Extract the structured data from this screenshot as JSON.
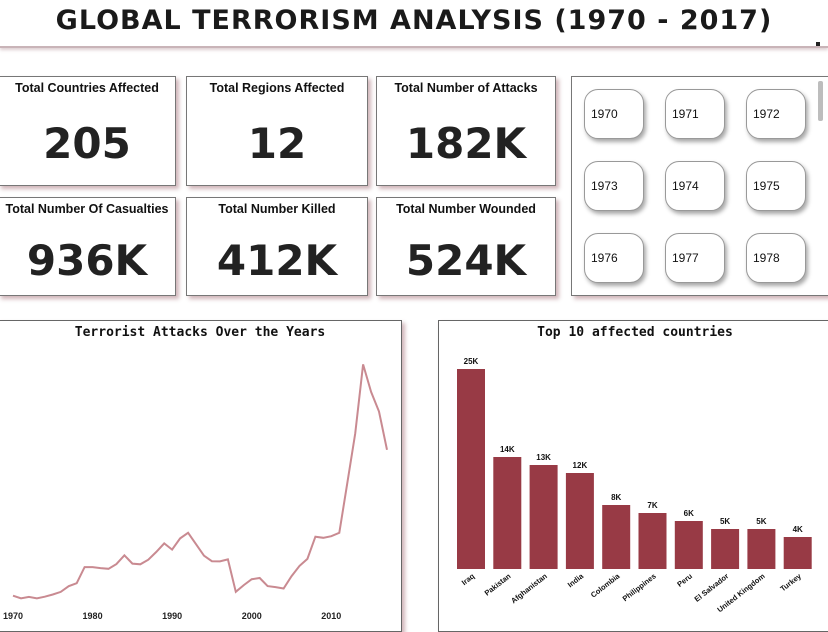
{
  "title": "GLOBAL TERRORISM ANALYSIS (1970 - 2017)",
  "kpis": [
    {
      "label": "Total Countries Affected",
      "value": "205"
    },
    {
      "label": "Total Regions Affected",
      "value": "12"
    },
    {
      "label": "Total Number of Attacks",
      "value": "182K"
    },
    {
      "label": "Total Number Of Casualties",
      "value": "936K"
    },
    {
      "label": "Total Number Killed",
      "value": "412K"
    },
    {
      "label": "Total Number Wounded",
      "value": "524K"
    }
  ],
  "year_slicer": [
    "1970",
    "1971",
    "1972",
    "1973",
    "1974",
    "1975",
    "1976",
    "1977",
    "1978"
  ],
  "colors": {
    "accent": "#983a45",
    "line": "#c98a91"
  },
  "chart_data": [
    {
      "type": "line",
      "title": "Terrorist Attacks Over the Years",
      "x_ticks": [
        "1970",
        "1980",
        "1990",
        "2000",
        "2010"
      ],
      "x": [
        1970,
        1971,
        1972,
        1973,
        1974,
        1975,
        1976,
        1977,
        1978,
        1979,
        1980,
        1981,
        1982,
        1983,
        1984,
        1985,
        1986,
        1987,
        1988,
        1989,
        1990,
        1991,
        1992,
        1994,
        1995,
        1996,
        1997,
        1998,
        1999,
        2000,
        2001,
        2002,
        2003,
        2004,
        2005,
        2006,
        2007,
        2008,
        2009,
        2010,
        2011,
        2012,
        2013,
        2014,
        2015,
        2016,
        2017
      ],
      "y": [
        650,
        470,
        570,
        470,
        580,
        740,
        920,
        1320,
        1530,
        2660,
        2660,
        2590,
        2540,
        2870,
        3490,
        2910,
        2860,
        3180,
        3720,
        4330,
        3890,
        4680,
        5070,
        3460,
        3080,
        3060,
        3200,
        930,
        1400,
        1810,
        1900,
        1330,
        1260,
        1160,
        2020,
        2750,
        3240,
        4800,
        4720,
        4830,
        5070,
        8520,
        12040,
        16900,
        14970,
        13590,
        10900
      ],
      "xlim": [
        1970,
        2017
      ]
    },
    {
      "type": "bar",
      "title": "Top 10 affected countries",
      "categories": [
        "Iraq",
        "Pakistan",
        "Afghanistan",
        "India",
        "Colombia",
        "Philippines",
        "Peru",
        "El Salvador",
        "United Kingdom",
        "Turkey"
      ],
      "values": [
        25000,
        14000,
        13000,
        12000,
        8000,
        7000,
        6000,
        5000,
        5000,
        4000
      ],
      "data_labels": [
        "25K",
        "14K",
        "13K",
        "12K",
        "8K",
        "7K",
        "6K",
        "5K",
        "5K",
        "4K"
      ]
    }
  ]
}
